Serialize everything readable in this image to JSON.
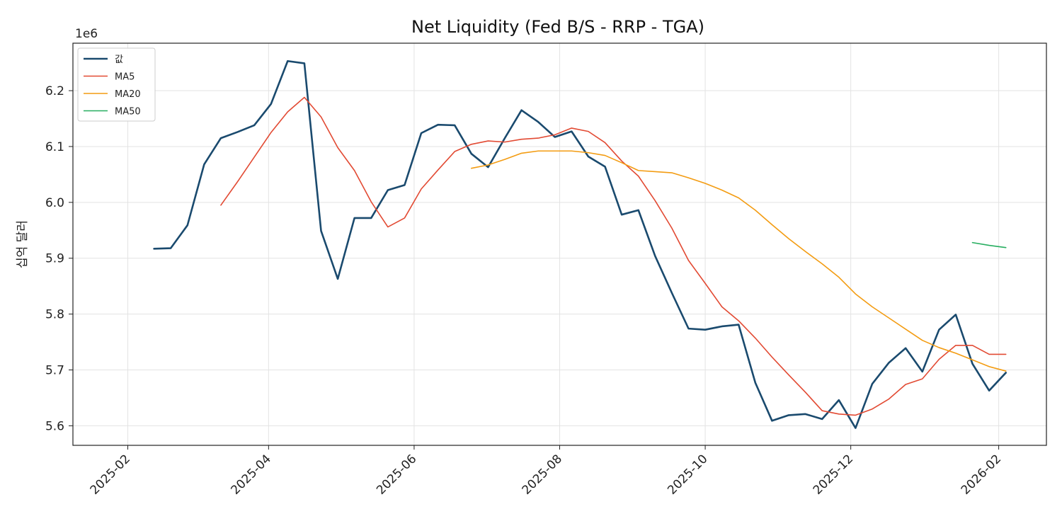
{
  "chart_data": {
    "type": "line",
    "title": "Net Liquidity (Fed B/S - RRP - TGA)",
    "xlabel": "",
    "ylabel": "십억 달러",
    "y_offset_label": "1e6",
    "ylim": [
      5.565,
      6.285
    ],
    "yticks": [
      5.6,
      5.7,
      5.8,
      5.9,
      6.0,
      6.1,
      6.2
    ],
    "ytick_labels": [
      "5.6",
      "5.7",
      "5.8",
      "5.9",
      "6.0",
      "6.1",
      "6.2"
    ],
    "xlim": [
      "2025-01-09",
      "2026-02-21"
    ],
    "xticks": [
      "2025-02-01",
      "2025-04-01",
      "2025-06-01",
      "2025-08-01",
      "2025-10-01",
      "2025-12-01",
      "2026-02-01"
    ],
    "xtick_labels": [
      "2025-02",
      "2025-04",
      "2025-06",
      "2025-08",
      "2025-10",
      "2025-12",
      "2026-02"
    ],
    "grid": true,
    "legend_position": "top-left",
    "dates": [
      "2025-02-12",
      "2025-02-19",
      "2025-02-26",
      "2025-03-05",
      "2025-03-12",
      "2025-03-19",
      "2025-03-26",
      "2025-04-02",
      "2025-04-09",
      "2025-04-16",
      "2025-04-23",
      "2025-04-30",
      "2025-05-07",
      "2025-05-14",
      "2025-05-21",
      "2025-05-28",
      "2025-06-04",
      "2025-06-11",
      "2025-06-18",
      "2025-06-25",
      "2025-07-02",
      "2025-07-09",
      "2025-07-16",
      "2025-07-23",
      "2025-07-30",
      "2025-08-06",
      "2025-08-13",
      "2025-08-20",
      "2025-08-27",
      "2025-09-03",
      "2025-09-10",
      "2025-09-17",
      "2025-09-24",
      "2025-10-01",
      "2025-10-08",
      "2025-10-15",
      "2025-10-22",
      "2025-10-29",
      "2025-11-05",
      "2025-11-12",
      "2025-11-19",
      "2025-11-26",
      "2025-12-03",
      "2025-12-10",
      "2025-12-17",
      "2025-12-24",
      "2025-12-31",
      "2026-01-07",
      "2026-01-14",
      "2026-01-21",
      "2026-01-28",
      "2026-02-04"
    ],
    "series": [
      {
        "name": "값",
        "color": "#1a4a6e",
        "width": 2.6,
        "values": [
          5.917,
          5.918,
          5.959,
          6.068,
          6.115,
          6.126,
          6.138,
          6.176,
          6.253,
          6.249,
          5.949,
          5.863,
          5.972,
          5.972,
          6.022,
          6.031,
          6.124,
          6.139,
          6.138,
          6.087,
          6.063,
          6.115,
          6.165,
          6.144,
          6.117,
          6.127,
          6.082,
          6.064,
          5.978,
          5.986,
          5.904,
          5.838,
          5.774,
          5.772,
          5.778,
          5.781,
          5.677,
          5.609,
          5.619,
          5.621,
          5.612,
          5.646,
          5.596,
          5.675,
          5.713,
          5.739,
          5.697,
          5.772,
          5.799,
          5.711,
          5.663,
          5.695
        ]
      },
      {
        "name": "MA5",
        "color": "#e24a33",
        "width": 1.6,
        "values": [
          null,
          null,
          null,
          null,
          5.995,
          6.037,
          6.081,
          6.125,
          6.162,
          6.188,
          6.153,
          6.098,
          6.057,
          6.001,
          5.956,
          5.972,
          6.024,
          6.058,
          6.091,
          6.104,
          6.11,
          6.108,
          6.113,
          6.115,
          6.121,
          6.133,
          6.127,
          6.107,
          6.074,
          6.047,
          6.003,
          5.954,
          5.896,
          5.855,
          5.813,
          5.788,
          5.757,
          5.723,
          5.691,
          5.66,
          5.627,
          5.621,
          5.619,
          5.63,
          5.648,
          5.674,
          5.684,
          5.719,
          5.744,
          5.744,
          5.728,
          5.728
        ]
      },
      {
        "name": "MA20",
        "color": "#f39c12",
        "width": 1.6,
        "values": [
          null,
          null,
          null,
          null,
          null,
          null,
          null,
          null,
          null,
          null,
          null,
          null,
          null,
          null,
          null,
          null,
          null,
          null,
          null,
          6.061,
          6.067,
          6.077,
          6.088,
          6.092,
          6.092,
          6.092,
          6.089,
          6.084,
          6.071,
          6.057,
          6.055,
          6.053,
          6.044,
          6.034,
          6.022,
          6.008,
          5.986,
          5.96,
          5.935,
          5.912,
          5.89,
          5.866,
          5.836,
          5.813,
          5.793,
          5.773,
          5.753,
          5.74,
          5.73,
          5.718,
          5.706,
          5.698
        ]
      },
      {
        "name": "MA50",
        "color": "#27ae60",
        "width": 1.6,
        "values": [
          null,
          null,
          null,
          null,
          null,
          null,
          null,
          null,
          null,
          null,
          null,
          null,
          null,
          null,
          null,
          null,
          null,
          null,
          null,
          null,
          null,
          null,
          null,
          null,
          null,
          null,
          null,
          null,
          null,
          null,
          null,
          null,
          null,
          null,
          null,
          null,
          null,
          null,
          null,
          null,
          null,
          null,
          null,
          null,
          null,
          null,
          null,
          null,
          null,
          5.928,
          5.923,
          5.919
        ]
      }
    ]
  }
}
